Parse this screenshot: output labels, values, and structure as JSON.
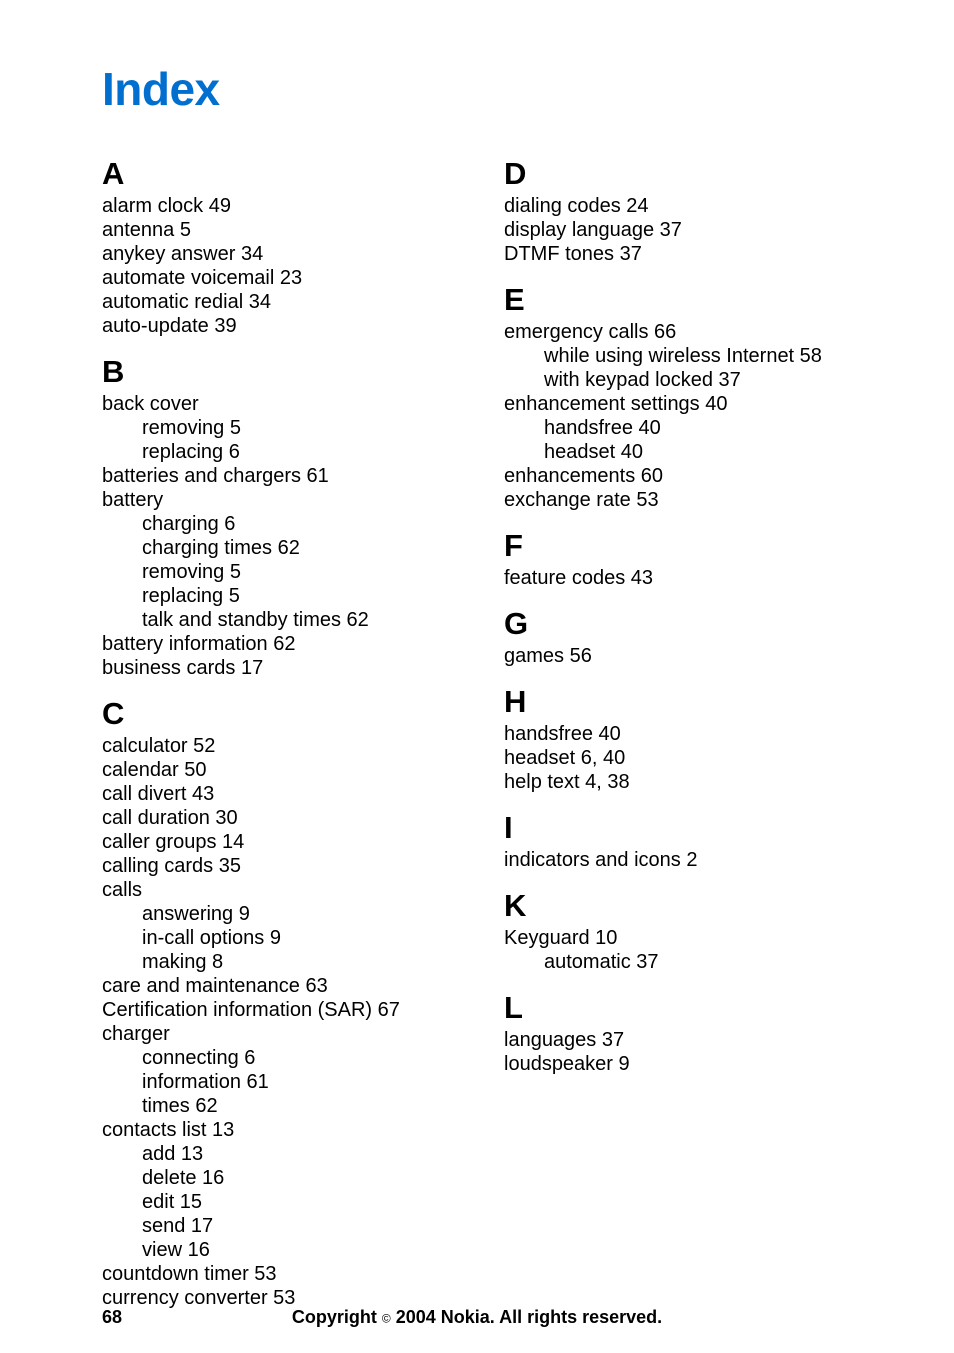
{
  "title": "Index",
  "footer": {
    "page": "68",
    "copyright_pre": "Copyright ",
    "copyright_sym": "©",
    "copyright_post": " 2004 Nokia. All rights reserved."
  },
  "left": [
    {
      "type": "letter",
      "text": "A",
      "first": true
    },
    {
      "type": "entry",
      "text": "alarm clock 49"
    },
    {
      "type": "entry",
      "text": "antenna 5"
    },
    {
      "type": "entry",
      "text": "anykey answer 34"
    },
    {
      "type": "entry",
      "text": "automate voicemail 23"
    },
    {
      "type": "entry",
      "text": "automatic redial 34"
    },
    {
      "type": "entry",
      "text": "auto-update 39"
    },
    {
      "type": "letter",
      "text": "B"
    },
    {
      "type": "entry",
      "text": "back cover"
    },
    {
      "type": "sub",
      "text": "removing 5"
    },
    {
      "type": "sub",
      "text": "replacing 6"
    },
    {
      "type": "entry",
      "text": "batteries and chargers 61"
    },
    {
      "type": "entry",
      "text": "battery"
    },
    {
      "type": "sub",
      "text": "charging 6"
    },
    {
      "type": "sub",
      "text": "charging times 62"
    },
    {
      "type": "sub",
      "text": "removing 5"
    },
    {
      "type": "sub",
      "text": "replacing 5"
    },
    {
      "type": "sub",
      "text": "talk and standby times 62"
    },
    {
      "type": "entry",
      "text": "battery information 62"
    },
    {
      "type": "entry",
      "text": "business cards 17"
    },
    {
      "type": "letter",
      "text": "C"
    },
    {
      "type": "entry",
      "text": "calculator 52"
    },
    {
      "type": "entry",
      "text": "calendar 50"
    },
    {
      "type": "entry",
      "text": "call divert 43"
    },
    {
      "type": "entry",
      "text": "call duration 30"
    },
    {
      "type": "entry",
      "text": "caller groups 14"
    },
    {
      "type": "entry",
      "text": "calling cards 35"
    },
    {
      "type": "entry",
      "text": "calls"
    },
    {
      "type": "sub",
      "text": "answering 9"
    },
    {
      "type": "sub",
      "text": "in-call options 9"
    },
    {
      "type": "sub",
      "text": "making 8"
    },
    {
      "type": "entry",
      "text": "care and maintenance 63"
    },
    {
      "type": "entry",
      "text": "Certification information (SAR) 67"
    },
    {
      "type": "entry",
      "text": "charger"
    },
    {
      "type": "sub",
      "text": "connecting 6"
    },
    {
      "type": "sub",
      "text": "information 61"
    },
    {
      "type": "sub",
      "text": "times 62"
    },
    {
      "type": "entry",
      "text": "contacts list 13"
    },
    {
      "type": "sub",
      "text": "add 13"
    },
    {
      "type": "sub",
      "text": "delete 16"
    },
    {
      "type": "sub",
      "text": "edit 15"
    },
    {
      "type": "sub",
      "text": "send 17"
    },
    {
      "type": "sub",
      "text": "view 16"
    },
    {
      "type": "entry",
      "text": "countdown timer 53"
    },
    {
      "type": "entry",
      "text": "currency converter 53"
    }
  ],
  "right": [
    {
      "type": "letter",
      "text": "D",
      "first": true
    },
    {
      "type": "entry",
      "text": "dialing codes 24"
    },
    {
      "type": "entry",
      "text": "display language 37"
    },
    {
      "type": "entry",
      "text": "DTMF tones 37"
    },
    {
      "type": "letter",
      "text": "E"
    },
    {
      "type": "entry",
      "text": "emergency calls 66"
    },
    {
      "type": "sub",
      "text": "while using wireless Internet 58"
    },
    {
      "type": "sub",
      "text": "with keypad locked 37"
    },
    {
      "type": "entry",
      "text": "enhancement settings 40"
    },
    {
      "type": "sub",
      "text": "handsfree 40"
    },
    {
      "type": "sub",
      "text": "headset 40"
    },
    {
      "type": "entry",
      "text": "enhancements 60"
    },
    {
      "type": "entry",
      "text": "exchange rate 53"
    },
    {
      "type": "letter",
      "text": "F"
    },
    {
      "type": "entry",
      "text": "feature codes 43"
    },
    {
      "type": "letter",
      "text": "G"
    },
    {
      "type": "entry",
      "text": "games 56"
    },
    {
      "type": "letter",
      "text": "H"
    },
    {
      "type": "entry",
      "text": "handsfree 40"
    },
    {
      "type": "entry",
      "text": "headset 6, 40"
    },
    {
      "type": "entry",
      "text": "help text 4, 38"
    },
    {
      "type": "letter",
      "text": "I"
    },
    {
      "type": "entry",
      "text": "indicators and icons 2"
    },
    {
      "type": "letter",
      "text": "K"
    },
    {
      "type": "entry",
      "text": "Keyguard 10"
    },
    {
      "type": "sub",
      "text": "automatic 37"
    },
    {
      "type": "letter",
      "text": "L"
    },
    {
      "type": "entry",
      "text": "languages 37"
    },
    {
      "type": "entry",
      "text": "loudspeaker 9"
    }
  ]
}
